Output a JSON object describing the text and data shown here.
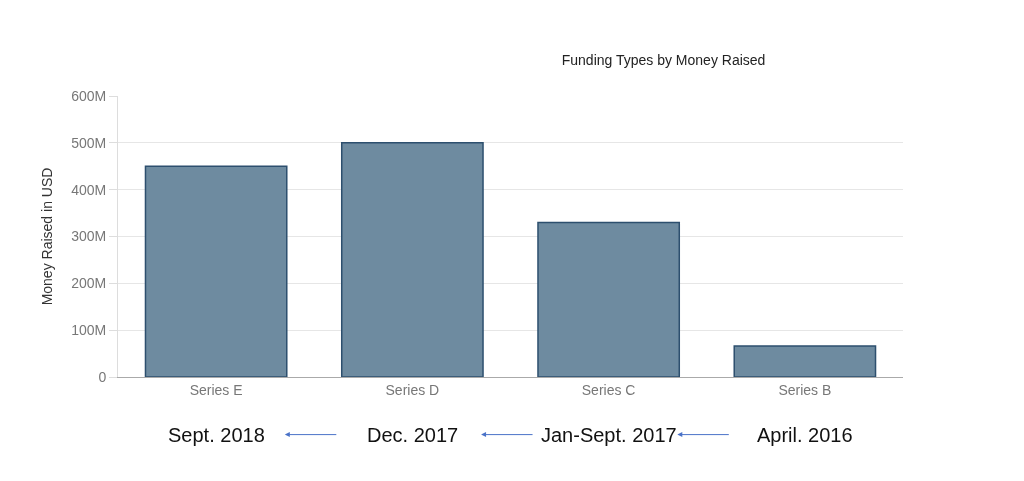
{
  "chart_data": {
    "type": "bar",
    "title": "Funding Types by Money Raised",
    "ylabel": "Money Raised in USD",
    "categories": [
      "Series E",
      "Series D",
      "Series C",
      "Series B"
    ],
    "values": [
      450,
      500,
      330,
      66
    ],
    "color": "#6e8ba0",
    "ylim": [
      0,
      600
    ],
    "yticks": [
      {
        "value": 0,
        "label": "0"
      },
      {
        "value": 100,
        "label": "100M"
      },
      {
        "value": 200,
        "label": "200M"
      },
      {
        "value": 300,
        "label": "300M"
      },
      {
        "value": 400,
        "label": "400M"
      },
      {
        "value": 500,
        "label": "500M"
      },
      {
        "value": 600,
        "label": "600M"
      }
    ],
    "grid": "y",
    "legend": false,
    "annotations": [
      "Sept. 2018",
      "Dec. 2017",
      "Jan-Sept. 2017",
      "April. 2016"
    ]
  }
}
